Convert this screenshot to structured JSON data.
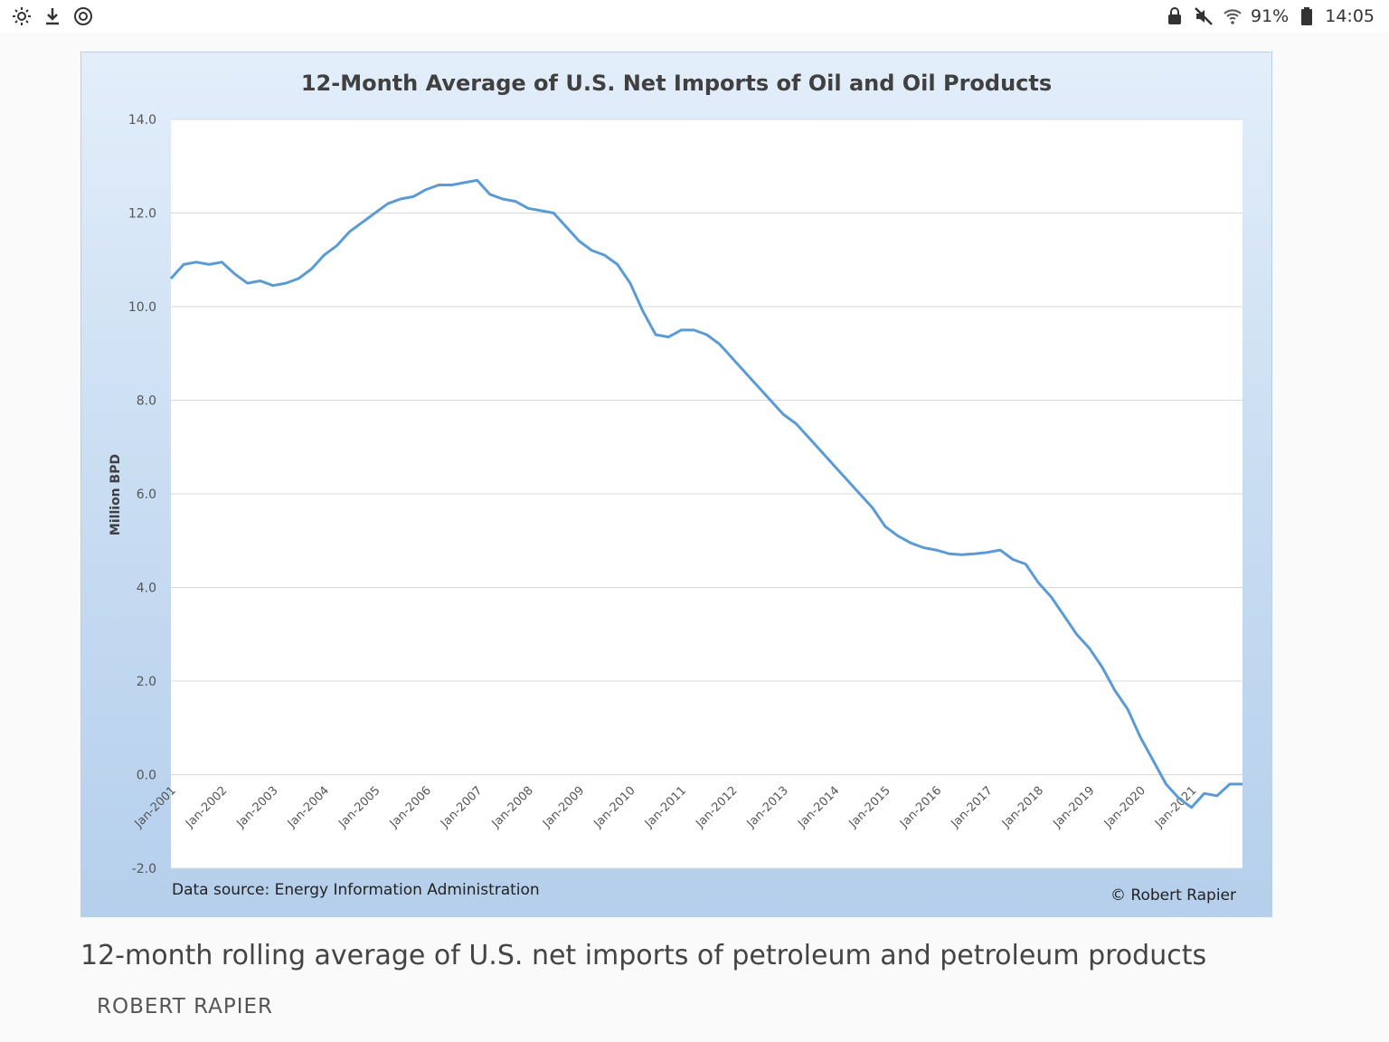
{
  "status_bar": {
    "left_icons": [
      "brightness-icon",
      "download-icon",
      "sync-icon"
    ],
    "right_icons": [
      "lock-icon",
      "mute-icon",
      "wifi-icon"
    ],
    "battery": "91%",
    "time": "14:05"
  },
  "caption": {
    "text": "12-month rolling average of U.S. net imports of petroleum and petroleum products",
    "credit": "ROBERT RAPIER"
  },
  "chart_data": {
    "type": "line",
    "title": "12-Month Average of U.S. Net Imports of Oil and Oil Products",
    "ylabel": "Million BPD",
    "xlabel": "",
    "ylim": [
      -2.0,
      14.0
    ],
    "yticks": [
      "14.0",
      "12.0",
      "10.0",
      "8.0",
      "6.0",
      "4.0",
      "2.0",
      "0.0",
      "-2.0"
    ],
    "xticks": [
      "Jan-2001",
      "Jan-2002",
      "Jan-2003",
      "Jan-2004",
      "Jan-2005",
      "Jan-2006",
      "Jan-2007",
      "Jan-2008",
      "Jan-2009",
      "Jan-2010",
      "Jan-2011",
      "Jan-2012",
      "Jan-2013",
      "Jan-2014",
      "Jan-2015",
      "Jan-2016",
      "Jan-2017",
      "Jan-2018",
      "Jan-2019",
      "Jan-2020",
      "Jan-2021"
    ],
    "grid": true,
    "source_note": "Data source: Energy Information Administration",
    "copyright": "© Robert Rapier",
    "line_color": "#5b9bd5",
    "series": [
      {
        "values": [
          [
            2001.0,
            10.6
          ],
          [
            2001.25,
            10.9
          ],
          [
            2001.5,
            10.95
          ],
          [
            2001.75,
            10.9
          ],
          [
            2002.0,
            10.95
          ],
          [
            2002.25,
            10.7
          ],
          [
            2002.5,
            10.5
          ],
          [
            2002.75,
            10.55
          ],
          [
            2003.0,
            10.45
          ],
          [
            2003.25,
            10.5
          ],
          [
            2003.5,
            10.6
          ],
          [
            2003.75,
            10.8
          ],
          [
            2004.0,
            11.1
          ],
          [
            2004.25,
            11.3
          ],
          [
            2004.5,
            11.6
          ],
          [
            2004.75,
            11.8
          ],
          [
            2005.0,
            12.0
          ],
          [
            2005.25,
            12.2
          ],
          [
            2005.5,
            12.3
          ],
          [
            2005.75,
            12.35
          ],
          [
            2006.0,
            12.5
          ],
          [
            2006.25,
            12.6
          ],
          [
            2006.5,
            12.6
          ],
          [
            2006.75,
            12.65
          ],
          [
            2007.0,
            12.7
          ],
          [
            2007.25,
            12.4
          ],
          [
            2007.5,
            12.3
          ],
          [
            2007.75,
            12.25
          ],
          [
            2008.0,
            12.1
          ],
          [
            2008.25,
            12.05
          ],
          [
            2008.5,
            12.0
          ],
          [
            2008.75,
            11.7
          ],
          [
            2009.0,
            11.4
          ],
          [
            2009.25,
            11.2
          ],
          [
            2009.5,
            11.1
          ],
          [
            2009.75,
            10.9
          ],
          [
            2010.0,
            10.5
          ],
          [
            2010.25,
            9.9
          ],
          [
            2010.5,
            9.4
          ],
          [
            2010.75,
            9.35
          ],
          [
            2011.0,
            9.5
          ],
          [
            2011.25,
            9.5
          ],
          [
            2011.5,
            9.4
          ],
          [
            2011.75,
            9.2
          ],
          [
            2012.0,
            8.9
          ],
          [
            2012.25,
            8.6
          ],
          [
            2012.5,
            8.3
          ],
          [
            2012.75,
            8.0
          ],
          [
            2013.0,
            7.7
          ],
          [
            2013.25,
            7.5
          ],
          [
            2013.5,
            7.2
          ],
          [
            2013.75,
            6.9
          ],
          [
            2014.0,
            6.6
          ],
          [
            2014.25,
            6.3
          ],
          [
            2014.5,
            6.0
          ],
          [
            2014.75,
            5.7
          ],
          [
            2015.0,
            5.3
          ],
          [
            2015.25,
            5.1
          ],
          [
            2015.5,
            4.95
          ],
          [
            2015.75,
            4.85
          ],
          [
            2016.0,
            4.8
          ],
          [
            2016.25,
            4.72
          ],
          [
            2016.5,
            4.7
          ],
          [
            2016.75,
            4.72
          ],
          [
            2017.0,
            4.75
          ],
          [
            2017.25,
            4.8
          ],
          [
            2017.5,
            4.6
          ],
          [
            2017.75,
            4.5
          ],
          [
            2018.0,
            4.1
          ],
          [
            2018.25,
            3.8
          ],
          [
            2018.5,
            3.4
          ],
          [
            2018.75,
            3.0
          ],
          [
            2019.0,
            2.7
          ],
          [
            2019.25,
            2.3
          ],
          [
            2019.5,
            1.8
          ],
          [
            2019.75,
            1.4
          ],
          [
            2020.0,
            0.8
          ],
          [
            2020.25,
            0.3
          ],
          [
            2020.5,
            -0.2
          ],
          [
            2020.75,
            -0.5
          ],
          [
            2021.0,
            -0.7
          ],
          [
            2021.25,
            -0.4
          ],
          [
            2021.5,
            -0.45
          ],
          [
            2021.75,
            -0.2
          ],
          [
            2022.0,
            -0.2
          ]
        ]
      }
    ]
  }
}
